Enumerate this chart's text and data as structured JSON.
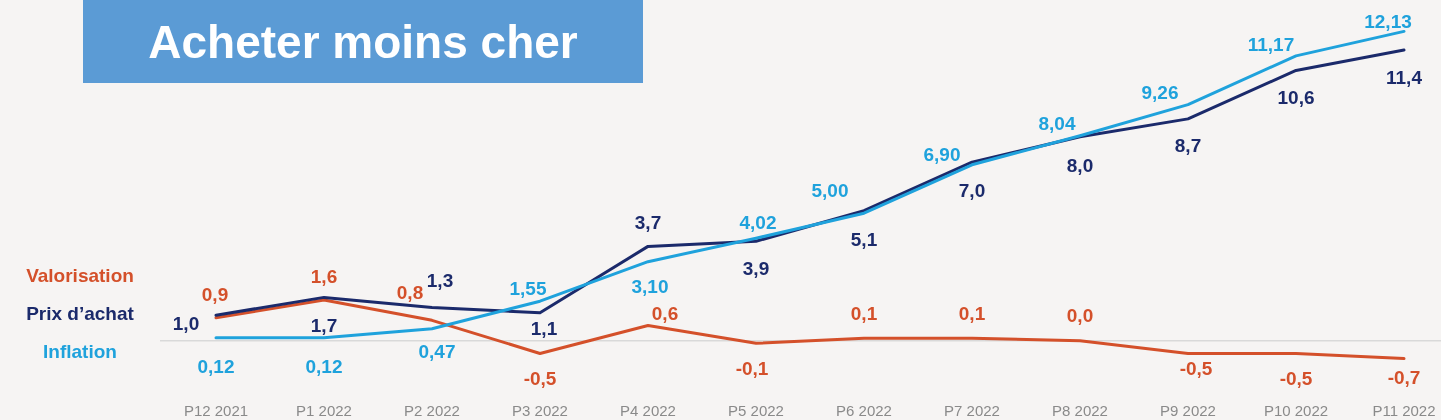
{
  "chart_data": {
    "type": "line",
    "title": "Acheter moins cher",
    "categories": [
      "P12 2021",
      "P1 2022",
      "P2 2022",
      "P3 2022",
      "P4 2022",
      "P5 2022",
      "P6 2022",
      "P7 2022",
      "P8 2022",
      "P9 2022",
      "P10 2022",
      "P11 2022"
    ],
    "series": [
      {
        "name": "Valorisation",
        "color": "#d4502a",
        "values": [
          0.9,
          1.6,
          0.8,
          -0.5,
          0.6,
          -0.1,
          0.1,
          0.1,
          0.0,
          -0.5,
          -0.5,
          -0.7
        ],
        "value_labels": [
          "0,9",
          "1,6",
          "0,8",
          "-0,5",
          "0,6",
          "-0,1",
          "0,1",
          "0,1",
          "0,0",
          "-0,5",
          "-0,5",
          "-0,7"
        ]
      },
      {
        "name": "Prix d’achat",
        "color": "#1b2a6b",
        "values": [
          1.0,
          1.7,
          1.3,
          1.1,
          3.7,
          3.9,
          5.1,
          7.0,
          8.0,
          8.7,
          10.6,
          11.4
        ],
        "value_labels": [
          "1,0",
          "1,7",
          "1,3",
          "1,1",
          "3,7",
          "3,9",
          "5,1",
          "7,0",
          "8,0",
          "8,7",
          "10,6",
          "11,4"
        ]
      },
      {
        "name": "Inflation",
        "color": "#1fa2dc",
        "values": [
          0.12,
          0.12,
          0.47,
          1.55,
          3.1,
          4.02,
          5.0,
          6.9,
          8.04,
          9.26,
          11.17,
          12.13
        ],
        "value_labels": [
          "0,12",
          "0,12",
          "0,47",
          "1,55",
          "3,10",
          "4,02",
          "5,00",
          "6,90",
          "8,04",
          "9,26",
          "11,17",
          "12,13"
        ]
      }
    ],
    "ref_lines": [
      {
        "axis": "y",
        "value": 0,
        "color": "#d9d9d9"
      }
    ],
    "legend": "left"
  }
}
